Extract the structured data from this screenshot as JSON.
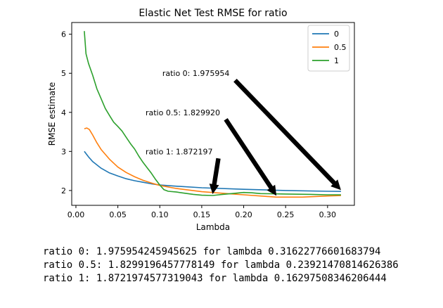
{
  "chart_data": {
    "type": "line",
    "title": "Elastic Net Test RMSE for ratio",
    "xlabel": "Lambda",
    "ylabel": "RMSE estimate",
    "xlim": [
      -0.005,
      0.332
    ],
    "ylim": [
      1.62,
      6.3
    ],
    "xticks": [
      0.0,
      0.05,
      0.1,
      0.15,
      0.2,
      0.25,
      0.3
    ],
    "xtick_labels": [
      "0.00",
      "0.05",
      "0.10",
      "0.15",
      "0.20",
      "0.25",
      "0.30"
    ],
    "yticks": [
      2,
      3,
      4,
      5,
      6
    ],
    "ytick_labels": [
      "2",
      "3",
      "4",
      "5",
      "6"
    ],
    "grid": false,
    "legend_position": "top-right",
    "series": [
      {
        "name": "0",
        "color": "#1f77b4",
        "points": [
          [
            0.01,
            3.0
          ],
          [
            0.015,
            2.86
          ],
          [
            0.02,
            2.74
          ],
          [
            0.03,
            2.57
          ],
          [
            0.04,
            2.45
          ],
          [
            0.05,
            2.37
          ],
          [
            0.06,
            2.3
          ],
          [
            0.07,
            2.25
          ],
          [
            0.08,
            2.21
          ],
          [
            0.09,
            2.17
          ],
          [
            0.1,
            2.14
          ],
          [
            0.12,
            2.11
          ],
          [
            0.15,
            2.07
          ],
          [
            0.2,
            2.03
          ],
          [
            0.25,
            2.0
          ],
          [
            0.3,
            1.98
          ],
          [
            0.316,
            1.976
          ]
        ]
      },
      {
        "name": "0.5",
        "color": "#ff7f0e",
        "points": [
          [
            0.01,
            3.58
          ],
          [
            0.013,
            3.6
          ],
          [
            0.016,
            3.56
          ],
          [
            0.02,
            3.42
          ],
          [
            0.025,
            3.22
          ],
          [
            0.03,
            3.05
          ],
          [
            0.04,
            2.8
          ],
          [
            0.05,
            2.6
          ],
          [
            0.06,
            2.46
          ],
          [
            0.07,
            2.35
          ],
          [
            0.08,
            2.26
          ],
          [
            0.09,
            2.19
          ],
          [
            0.1,
            2.13
          ],
          [
            0.12,
            2.05
          ],
          [
            0.15,
            1.97
          ],
          [
            0.18,
            1.92
          ],
          [
            0.2,
            1.89
          ],
          [
            0.239,
            1.83
          ],
          [
            0.27,
            1.83
          ],
          [
            0.3,
            1.86
          ],
          [
            0.316,
            1.87
          ]
        ]
      },
      {
        "name": "1",
        "color": "#2ca02c",
        "points": [
          [
            0.01,
            6.08
          ],
          [
            0.012,
            5.5
          ],
          [
            0.015,
            5.25
          ],
          [
            0.02,
            4.95
          ],
          [
            0.025,
            4.6
          ],
          [
            0.03,
            4.35
          ],
          [
            0.035,
            4.1
          ],
          [
            0.04,
            3.92
          ],
          [
            0.045,
            3.75
          ],
          [
            0.05,
            3.64
          ],
          [
            0.055,
            3.52
          ],
          [
            0.06,
            3.36
          ],
          [
            0.065,
            3.2
          ],
          [
            0.07,
            3.06
          ],
          [
            0.075,
            2.88
          ],
          [
            0.08,
            2.72
          ],
          [
            0.085,
            2.58
          ],
          [
            0.09,
            2.44
          ],
          [
            0.095,
            2.28
          ],
          [
            0.1,
            2.14
          ],
          [
            0.105,
            2.02
          ],
          [
            0.11,
            1.98
          ],
          [
            0.12,
            1.96
          ],
          [
            0.13,
            1.93
          ],
          [
            0.14,
            1.9
          ],
          [
            0.15,
            1.88
          ],
          [
            0.163,
            1.872
          ],
          [
            0.175,
            1.9
          ],
          [
            0.19,
            1.93
          ],
          [
            0.2,
            1.95
          ],
          [
            0.21,
            1.94
          ],
          [
            0.22,
            1.92
          ],
          [
            0.25,
            1.91
          ],
          [
            0.28,
            1.9
          ],
          [
            0.3,
            1.89
          ],
          [
            0.316,
            1.89
          ]
        ]
      }
    ],
    "annotations": [
      {
        "text": "ratio 0: 1.975954",
        "text_xy": [
          0.103,
          5.0
        ],
        "target_xy": [
          0.316,
          1.976
        ]
      },
      {
        "text": "ratio 0.5: 1.829920",
        "text_xy": [
          0.083,
          4.0
        ],
        "target_xy": [
          0.239,
          1.83
        ]
      },
      {
        "text": "ratio 1: 1.872197",
        "text_xy": [
          0.083,
          3.0
        ],
        "target_xy": [
          0.163,
          1.872
        ]
      }
    ]
  },
  "output_lines": [
    "ratio 0: 1.975954245945625 for lambda 0.31622776601683794",
    "ratio 0.5: 1.8299196457778149 for lambda 0.23921470814626386",
    "ratio 1: 1.8721974577319043 for lambda 0.16297508346206444"
  ]
}
